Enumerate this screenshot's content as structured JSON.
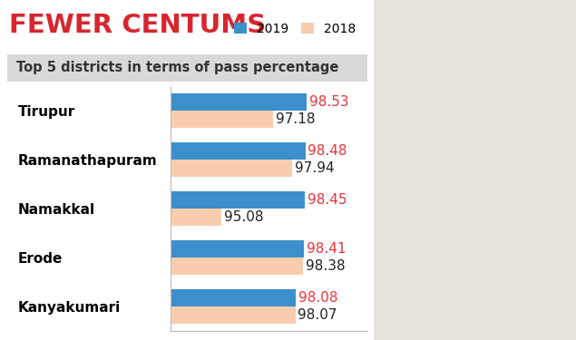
{
  "chart_data": {
    "type": "bar",
    "orientation": "horizontal",
    "title": "FEWER CENTUMS",
    "subtitle": "Top 5 districts in terms of pass percentage",
    "categories": [
      "Tirupur",
      "Ramanathapuram",
      "Namakkal",
      "Erode",
      "Kanyakumari"
    ],
    "series": [
      {
        "name": "2019",
        "color": "#3b8fcb",
        "values": [
          98.53,
          98.48,
          98.45,
          98.41,
          98.08
        ]
      },
      {
        "name": "2018",
        "color": "#f8cdae",
        "values": [
          97.18,
          97.94,
          95.08,
          98.38,
          98.07
        ]
      }
    ],
    "xlim": [
      93,
      101
    ],
    "xticks": [],
    "tick_labels": "y",
    "data_labels": true,
    "legend": "upper right",
    "grid": false
  }
}
